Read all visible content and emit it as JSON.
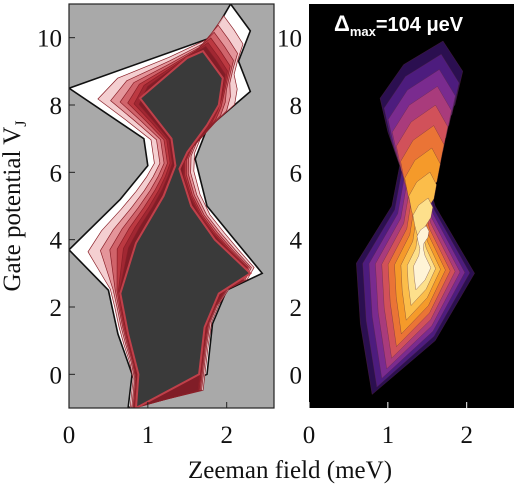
{
  "figure": {
    "xlabel": "Zeeman field  (meV)",
    "ylabel": "Gate potential  V",
    "ylabel_subscript": "J",
    "annotation": {
      "prefix": "Δ",
      "subscript": "max",
      "value_text": "=104 μeV"
    }
  },
  "chart_data": [
    {
      "type": "heatmap",
      "panel": "left",
      "title": "",
      "xlim": [
        0,
        2.6
      ],
      "ylim": [
        -1,
        11
      ],
      "x_ticks": [
        "0",
        "1",
        "2"
      ],
      "y_ticks": [
        "0",
        "2",
        "4",
        "6",
        "8",
        "10"
      ],
      "background_color": "#a9a9a9",
      "interior_color": "#3a3a3a",
      "border_color": "#ffffff",
      "contour_color": "#b8313a",
      "region_left_boundary": [
        [
          0.75,
          -1
        ],
        [
          0.8,
          0
        ],
        [
          0.62,
          1.2
        ],
        [
          0.5,
          2.5
        ],
        [
          0.0,
          3.7
        ],
        [
          0.65,
          5.2
        ],
        [
          1.0,
          6.2
        ],
        [
          0.95,
          7.0
        ],
        [
          0.0,
          8.5
        ],
        [
          1.8,
          10.0
        ],
        [
          2.05,
          11.0
        ]
      ],
      "region_right_boundary": [
        [
          2.05,
          11.0
        ],
        [
          2.3,
          10.2
        ],
        [
          2.15,
          9.3
        ],
        [
          2.3,
          8.4
        ],
        [
          1.75,
          7.3
        ],
        [
          1.6,
          6.4
        ],
        [
          1.75,
          5.0
        ],
        [
          2.1,
          4.0
        ],
        [
          2.45,
          3.0
        ],
        [
          2.0,
          2.5
        ],
        [
          1.82,
          1.5
        ],
        [
          1.75,
          0
        ],
        [
          1.7,
          -1
        ]
      ],
      "interior_left_boundary": [
        [
          0.85,
          -1
        ],
        [
          0.88,
          0
        ],
        [
          0.75,
          1.2
        ],
        [
          0.65,
          2.4
        ],
        [
          0.85,
          3.9
        ],
        [
          1.2,
          5.3
        ],
        [
          1.35,
          6.2
        ],
        [
          1.3,
          7.0
        ],
        [
          0.9,
          8.2
        ],
        [
          1.5,
          9.4
        ],
        [
          1.7,
          9.6
        ]
      ],
      "interior_right_boundary": [
        [
          1.7,
          9.6
        ],
        [
          1.95,
          8.8
        ],
        [
          1.9,
          8.0
        ],
        [
          1.75,
          7.4
        ],
        [
          1.5,
          6.6
        ],
        [
          1.4,
          6.1
        ],
        [
          1.55,
          5.0
        ],
        [
          1.85,
          4.0
        ],
        [
          2.3,
          3.0
        ],
        [
          1.9,
          2.4
        ],
        [
          1.72,
          1.4
        ],
        [
          1.65,
          0
        ],
        [
          1.6,
          -1
        ]
      ]
    },
    {
      "type": "heatmap",
      "panel": "right",
      "title": "",
      "xlim": [
        0,
        2.6
      ],
      "ylim": [
        -1,
        11
      ],
      "x_ticks": [
        "0",
        "1",
        "2"
      ],
      "y_ticks": [
        "0",
        "2",
        "4",
        "6",
        "8",
        "10"
      ],
      "background_color": "#000000",
      "colormap": [
        "#2b0f50",
        "#4d1c7e",
        "#7a2b8f",
        "#a93b7c",
        "#d1515a",
        "#ea7436",
        "#f59a2a",
        "#fbbd4a",
        "#fde08c",
        "#fff4d6"
      ],
      "value_max": 104,
      "value_unit": "μeV",
      "region_left_boundary": [
        [
          0.8,
          -0.6
        ],
        [
          0.65,
          1.5
        ],
        [
          0.6,
          3.3
        ],
        [
          1.05,
          5.0
        ],
        [
          1.15,
          6.2
        ],
        [
          1.0,
          7.2
        ],
        [
          0.9,
          8.2
        ],
        [
          1.2,
          9.2
        ],
        [
          1.7,
          9.9
        ]
      ],
      "region_right_boundary": [
        [
          1.7,
          9.9
        ],
        [
          1.95,
          9.0
        ],
        [
          1.85,
          8.0
        ],
        [
          1.5,
          7.0
        ],
        [
          1.45,
          6.2
        ],
        [
          1.6,
          5.0
        ],
        [
          2.1,
          3.0
        ],
        [
          1.6,
          1.0
        ],
        [
          1.6,
          -0.6
        ]
      ],
      "hotspot": [
        1.45,
        3.2
      ]
    }
  ]
}
